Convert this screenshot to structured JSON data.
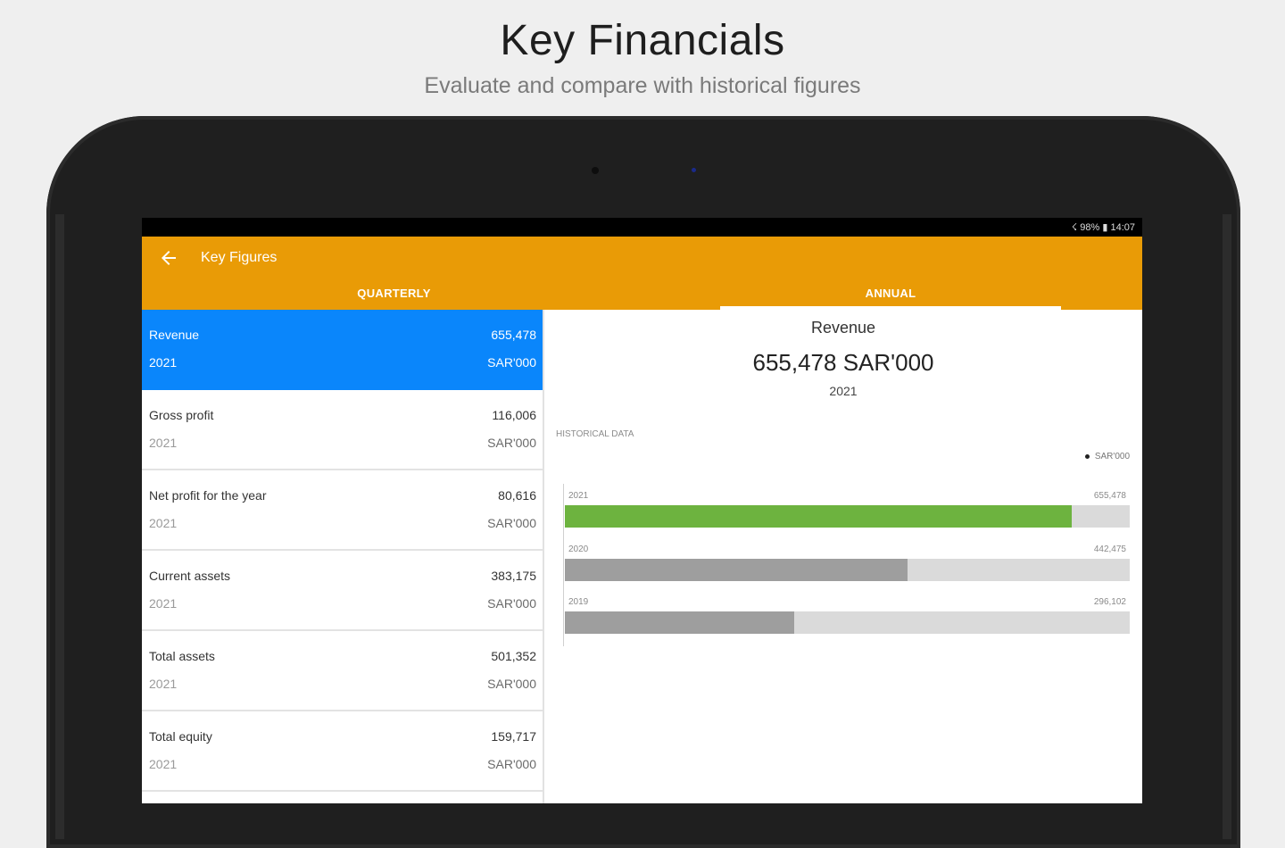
{
  "headline": "Key Financials",
  "subheadline": "Evaluate and compare with historical figures",
  "status_bar": {
    "text": "☇ 98% ▮ 14:07"
  },
  "app_bar": {
    "title": "Key Figures",
    "back_icon": "arrow-left-icon",
    "tabs": [
      {
        "label": "QUARTERLY",
        "selected": false
      },
      {
        "label": "ANNUAL",
        "selected": true
      }
    ]
  },
  "colors": {
    "accent": "#e99b06",
    "selected_row": "#0a86fb",
    "bar_current": "#6db33f",
    "bar_past": "#9e9e9e",
    "bar_track": "#dadada"
  },
  "figures": [
    {
      "label": "Revenue",
      "value": "655,478",
      "year": "2021",
      "unit": "SAR'000",
      "selected": true
    },
    {
      "label": "Gross profit",
      "value": "116,006",
      "year": "2021",
      "unit": "SAR'000",
      "selected": false
    },
    {
      "label": "Net profit for the year",
      "value": "80,616",
      "year": "2021",
      "unit": "SAR'000",
      "selected": false
    },
    {
      "label": "Current assets",
      "value": "383,175",
      "year": "2021",
      "unit": "SAR'000",
      "selected": false
    },
    {
      "label": "Total assets",
      "value": "501,352",
      "year": "2021",
      "unit": "SAR'000",
      "selected": false
    },
    {
      "label": "Total equity",
      "value": "159,717",
      "year": "2021",
      "unit": "SAR'000",
      "selected": false
    }
  ],
  "detail": {
    "title": "Revenue",
    "value": "655,478 SAR'000",
    "year": "2021",
    "historical_label": "HISTORICAL DATA",
    "legend": "SAR'000"
  },
  "chart_data": {
    "type": "bar",
    "orientation": "horizontal",
    "categories": [
      "2021",
      "2020",
      "2019"
    ],
    "values": [
      655478,
      442475,
      296102
    ],
    "value_labels": [
      "655,478",
      "442,475",
      "296,102"
    ],
    "legend": [
      "SAR'000"
    ],
    "legend_position": "top-right",
    "xlim": [
      0,
      730000
    ]
  }
}
